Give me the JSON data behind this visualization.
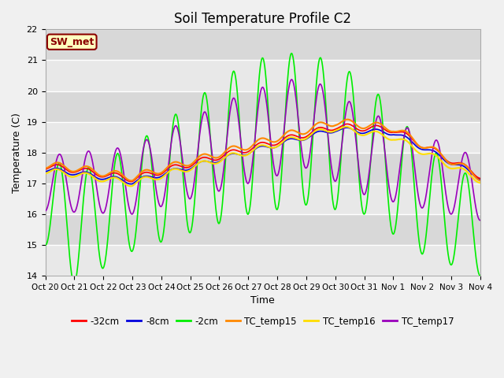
{
  "title": "Soil Temperature Profile C2",
  "xlabel": "Time",
  "ylabel": "Temperature (C)",
  "ylim": [
    14.0,
    22.0
  ],
  "yticks": [
    14.0,
    15.0,
    16.0,
    17.0,
    18.0,
    19.0,
    20.0,
    21.0,
    22.0
  ],
  "xtick_labels": [
    "Oct 20",
    "Oct 21",
    "Oct 22",
    "Oct 23",
    "Oct 24",
    "Oct 25",
    "Oct 26",
    "Oct 27",
    "Oct 28",
    "Oct 29",
    "Oct 30",
    "Oct 31",
    "Nov 1",
    "Nov 2",
    "Nov 3",
    "Nov 4"
  ],
  "series": {
    "-32cm": {
      "color": "#ff0000",
      "linewidth": 1.2
    },
    "-8cm": {
      "color": "#0000dd",
      "linewidth": 1.2
    },
    "-2cm": {
      "color": "#00ee00",
      "linewidth": 1.2
    },
    "TC_temp15": {
      "color": "#ff8800",
      "linewidth": 1.5
    },
    "TC_temp16": {
      "color": "#ffdd00",
      "linewidth": 1.5
    },
    "TC_temp17": {
      "color": "#9900bb",
      "linewidth": 1.2
    }
  },
  "annotation_text": "SW_met",
  "annotation_color": "#8B0000",
  "annotation_bg": "#ffffc0",
  "annotation_border": "#8B0000",
  "bg_color_light": "#e8e8e8",
  "bg_color_dark": "#d8d8d8",
  "grid_color": "#ffffff",
  "title_fontsize": 12,
  "fig_bg": "#f0f0f0"
}
